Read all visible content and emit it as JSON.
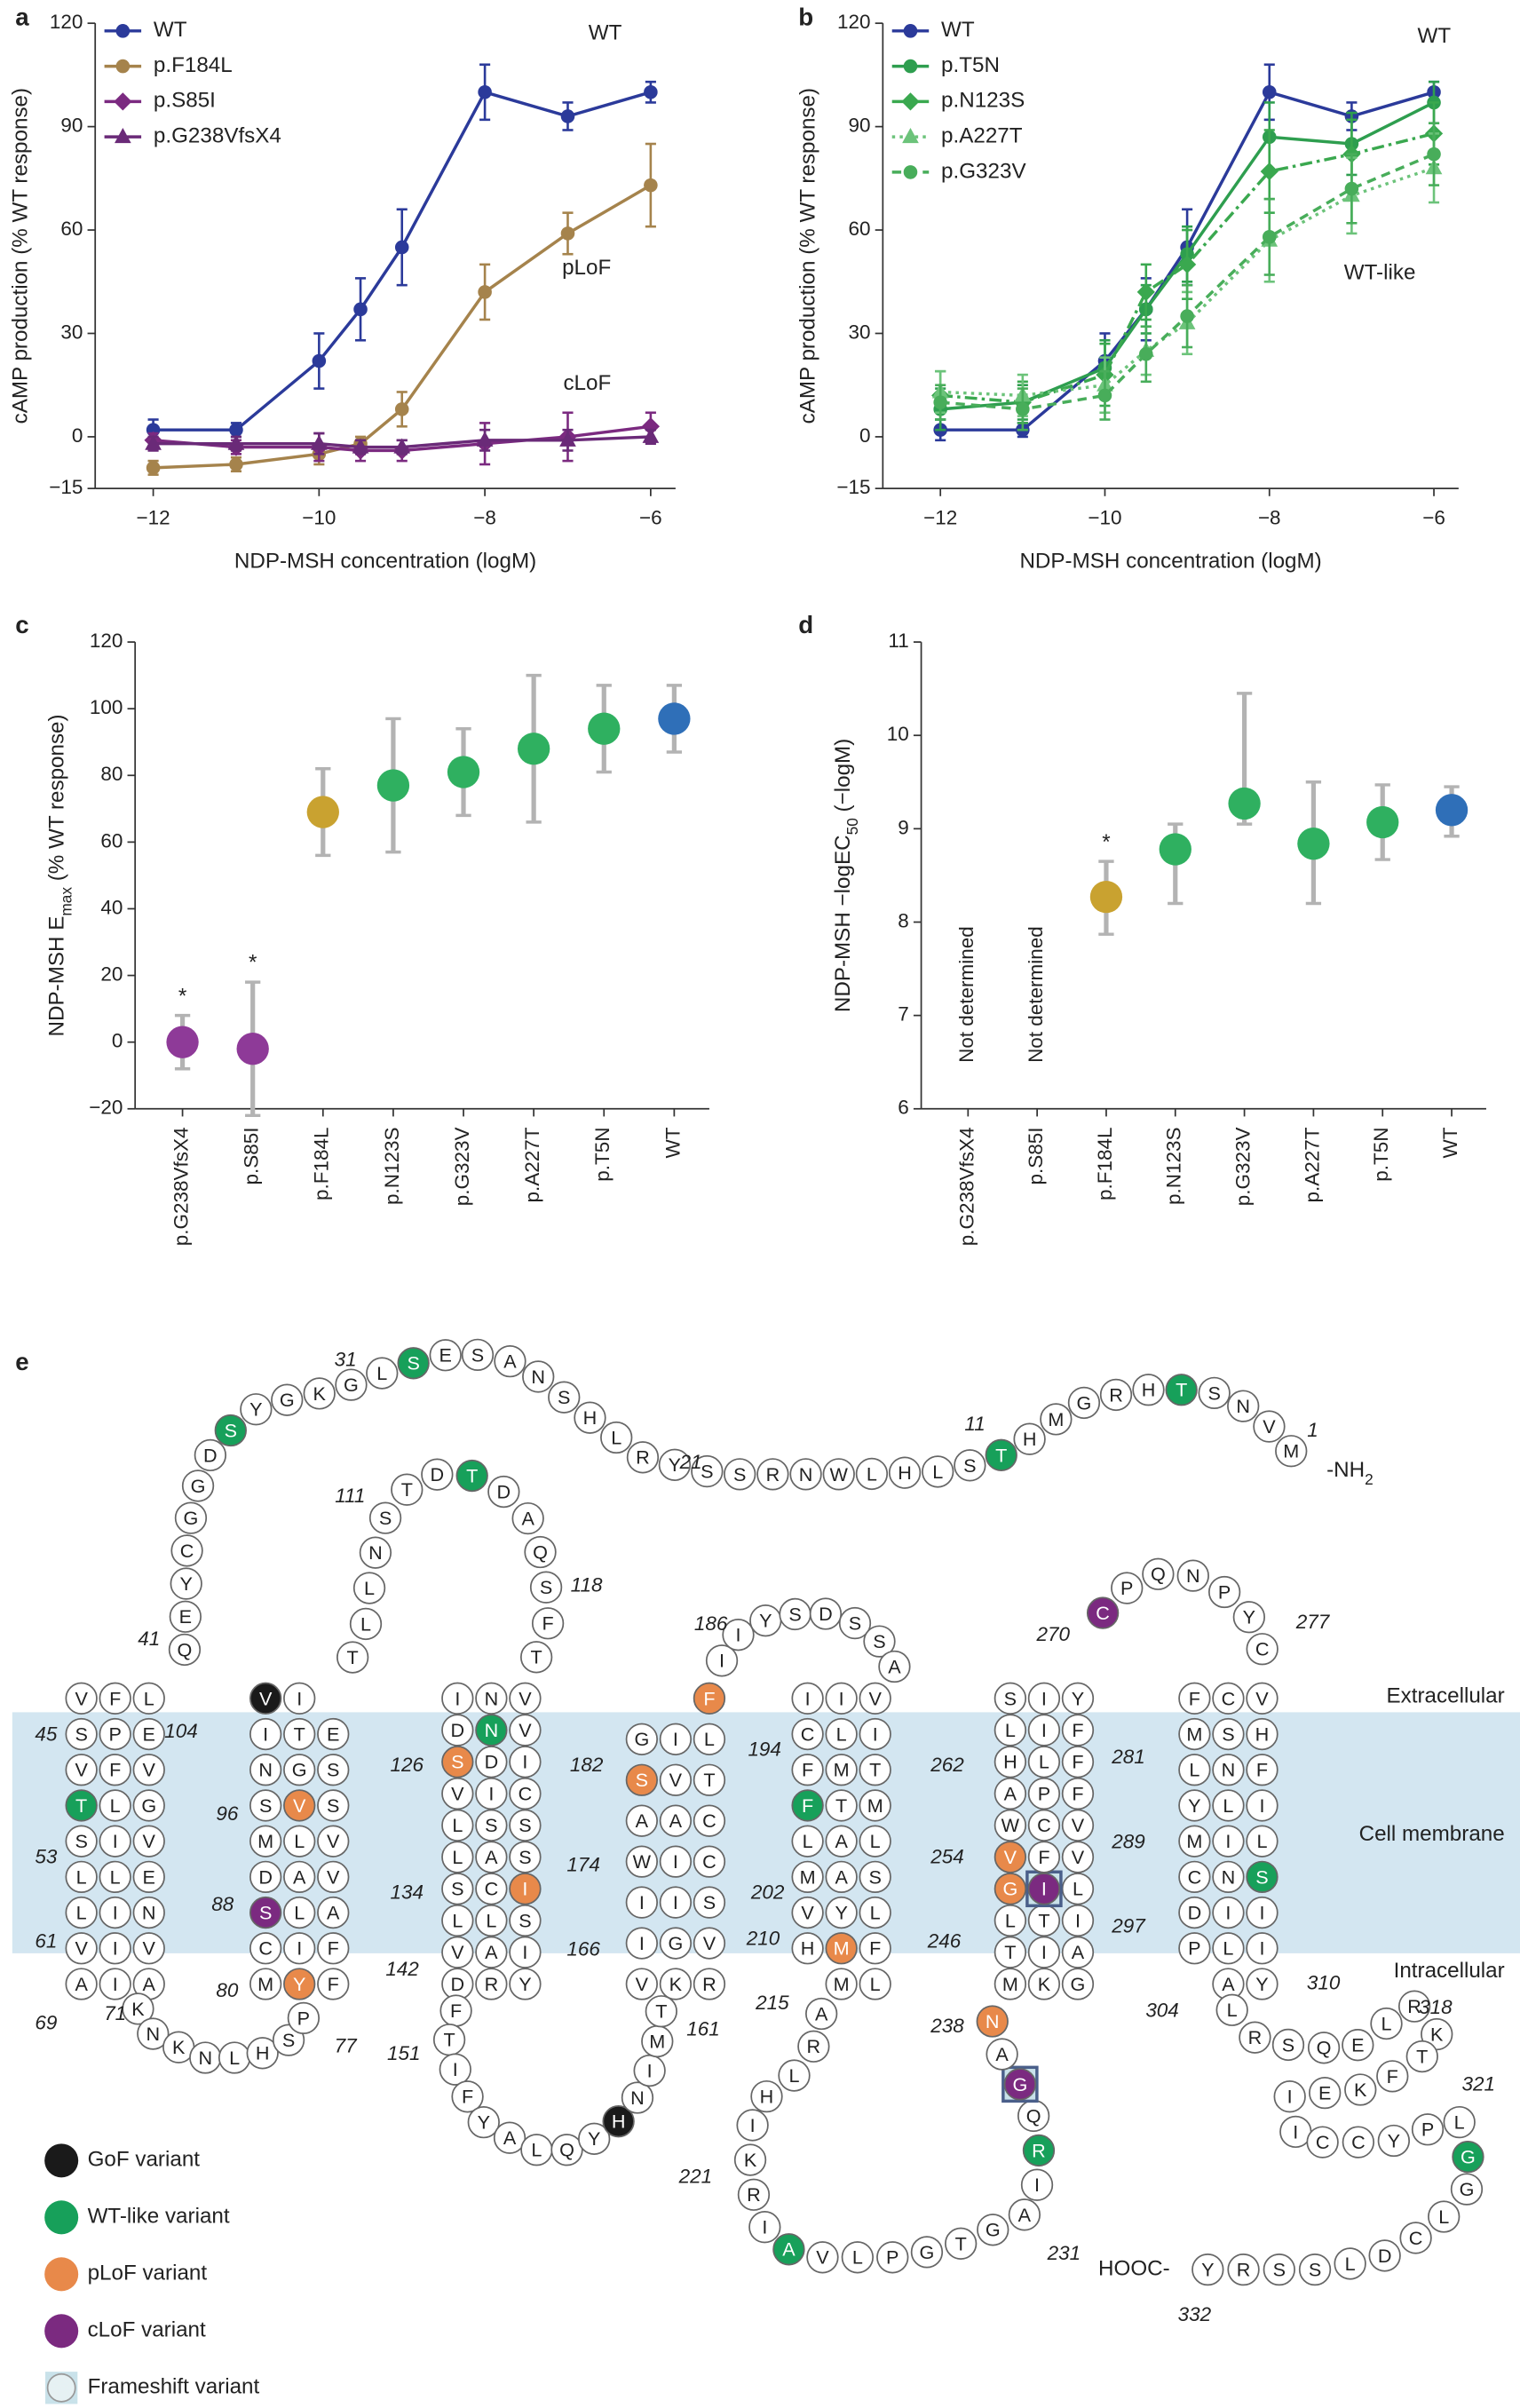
{
  "chart_data": [
    {
      "panel": "a",
      "type": "line",
      "x": [
        -12,
        -11,
        -10,
        -9.5,
        -9,
        -8,
        -7,
        -6
      ],
      "series": [
        {
          "name": "WT",
          "color": "#2b3a9a",
          "marker": "circle",
          "linestyle": "solid",
          "values": [
            2,
            2,
            22,
            37,
            55,
            100,
            93,
            100
          ],
          "errors": [
            3,
            2,
            8,
            9,
            11,
            8,
            4,
            3
          ]
        },
        {
          "name": "p.F184L",
          "color": "#a5834c",
          "marker": "circle",
          "linestyle": "solid",
          "values": [
            -9,
            -8,
            -5,
            -2,
            8,
            42,
            59,
            73
          ],
          "errors": [
            2,
            2,
            3,
            2,
            5,
            8,
            6,
            12
          ]
        },
        {
          "name": "p.S85I",
          "color": "#7b2a80",
          "marker": "diamond",
          "linestyle": "solid",
          "values": [
            -1,
            -3,
            -3,
            -4,
            -4,
            -2,
            0,
            3
          ],
          "errors": [
            2,
            2,
            4,
            3,
            3,
            6,
            7,
            4
          ]
        },
        {
          "name": "p.G238VfsX4",
          "color": "#6a2a78",
          "marker": "triangle",
          "linestyle": "solid",
          "values": [
            -2,
            -2,
            -2,
            -3,
            -3,
            -1,
            -1,
            0
          ],
          "errors": [
            2,
            2,
            3,
            2,
            2,
            3,
            3,
            2
          ]
        }
      ],
      "xlim": [
        -12.7,
        -5.7
      ],
      "xticks": [
        {
          "value": -12,
          "label": "−12"
        },
        {
          "value": -10,
          "label": "−10"
        },
        {
          "value": -8,
          "label": "−8"
        },
        {
          "value": -6,
          "label": "−6"
        }
      ],
      "ylim": [
        -15,
        120
      ],
      "yticks": [
        {
          "value": -15,
          "label": "−15"
        },
        0,
        30,
        60,
        90,
        120
      ],
      "x_label": "NDP-MSH concentration (logM)",
      "y_label": "cAMP production (% WT response)",
      "annotations": [
        "WT",
        "pLoF",
        "cLoF"
      ]
    },
    {
      "panel": "b",
      "type": "line",
      "x": [
        -12,
        -11,
        -10,
        -9.5,
        -9,
        -8,
        -7,
        -6
      ],
      "series": [
        {
          "name": "WT",
          "color": "#2b3a9a",
          "marker": "circle",
          "linestyle": "solid",
          "values": [
            2,
            2,
            22,
            37,
            55,
            100,
            93,
            100
          ],
          "errors": [
            3,
            2,
            8,
            9,
            11,
            8,
            4,
            3
          ]
        },
        {
          "name": "p.T5N",
          "color": "#2e9e4f",
          "marker": "circle",
          "linestyle": "solid",
          "values": [
            8,
            10,
            20,
            37,
            53,
            87,
            85,
            97
          ],
          "errors": [
            6,
            5,
            8,
            7,
            8,
            10,
            9,
            6
          ]
        },
        {
          "name": "p.N123S",
          "color": "#3aa84f",
          "marker": "diamond",
          "linestyle": "dashdot",
          "values": [
            12,
            10,
            18,
            42,
            50,
            77,
            82,
            88
          ],
          "errors": [
            7,
            6,
            9,
            8,
            10,
            12,
            10,
            9
          ]
        },
        {
          "name": "p.A227T",
          "color": "#6cc37a",
          "marker": "triangle",
          "linestyle": "dotted",
          "values": [
            13,
            12,
            15,
            25,
            33,
            57,
            70,
            78
          ],
          "errors": [
            6,
            6,
            8,
            7,
            9,
            12,
            11,
            10
          ]
        },
        {
          "name": "p.G323V",
          "color": "#48ad5a",
          "marker": "circle",
          "linestyle": "dashed",
          "values": [
            10,
            8,
            12,
            24,
            35,
            58,
            72,
            82
          ],
          "errors": [
            5,
            6,
            7,
            8,
            9,
            11,
            10,
            9
          ]
        }
      ],
      "xlim": [
        -12.7,
        -5.7
      ],
      "xticks": [
        {
          "value": -12,
          "label": "−12"
        },
        {
          "value": -10,
          "label": "−10"
        },
        {
          "value": -8,
          "label": "−8"
        },
        {
          "value": -6,
          "label": "−6"
        }
      ],
      "ylim": [
        -15,
        120
      ],
      "yticks": [
        {
          "value": -15,
          "label": "−15"
        },
        0,
        30,
        60,
        90,
        120
      ],
      "x_label": "NDP-MSH concentration (logM)",
      "y_label": "cAMP production (% WT response)",
      "annotations": [
        "WT",
        "WT-like"
      ]
    },
    {
      "panel": "c",
      "type": "dot",
      "categories": [
        "p.G238VfsX4",
        "p.S85I",
        "p.F184L",
        "p.N123S",
        "p.G323V",
        "p.A227T",
        "p.T5N",
        "WT"
      ],
      "values": [
        0,
        -2,
        69,
        77,
        81,
        88,
        94,
        97
      ],
      "errors": [
        8,
        20,
        13,
        20,
        13,
        22,
        13,
        10
      ],
      "colors": [
        "#8e3a98",
        "#8e3a98",
        "#c9a230",
        "#2fb060",
        "#2fb060",
        "#2fb060",
        "#2fb060",
        "#2f6fb8"
      ],
      "significance": [
        "*",
        "*",
        null,
        null,
        null,
        null,
        null,
        null
      ],
      "ylim": [
        -20,
        120
      ],
      "yticks": [
        {
          "value": -20,
          "label": "−20"
        },
        0,
        20,
        40,
        60,
        80,
        100,
        120
      ],
      "y_label": [
        "NDP-MSH E",
        "max",
        " (% WT response)"
      ]
    },
    {
      "panel": "d",
      "type": "dot",
      "categories": [
        "p.G238VfsX4",
        "p.S85I",
        "p.F184L",
        "p.N123S",
        "p.G323V",
        "p.A227T",
        "p.T5N",
        "WT"
      ],
      "values": [
        null,
        null,
        8.27,
        8.78,
        9.27,
        8.84,
        9.07,
        9.2
      ],
      "error_low": [
        null,
        null,
        0.4,
        0.58,
        0.22,
        0.64,
        0.4,
        0.28
      ],
      "error_high": [
        null,
        null,
        0.38,
        0.27,
        1.18,
        0.66,
        0.4,
        0.25
      ],
      "colors": [
        "#8e3a98",
        "#8e3a98",
        "#c9a230",
        "#2fb060",
        "#2fb060",
        "#2fb060",
        "#2fb060",
        "#2f6fb8"
      ],
      "significance": [
        null,
        null,
        "*",
        null,
        null,
        null,
        null,
        null
      ],
      "not_determined": [
        "Not determined",
        "Not determined",
        null,
        null,
        null,
        null,
        null,
        null
      ],
      "ylim": [
        6,
        11
      ],
      "yticks": [
        6,
        7,
        8,
        9,
        10,
        11
      ],
      "y_label": [
        "NDP-MSH −logEC",
        "50",
        " (−logM)"
      ]
    }
  ],
  "snake": {
    "panel": "e",
    "sequence": "MVNSTHRGMHTSLHLWNRSSYRLHSNASESLGKGYSDGGCYEQLFVSPEVFVTLGVISLLENILVIVAIAKNKNLHSPMYFFICSLAVADMLVSVSNGSETIVITLLNSTDTDAQSFTVNIDNVIDSVICSSLLASICSLLSIAVDRYFTIFYALQYHNIMTVKRVGIIISCIWAACTVSGILFIIYSDSSAVIICLITMFFTMLALMASLYVHMFLMARLHIKRIAVLPGTGAIRQGANMKGAITLTILIGVFVVCWAPFFLHLIFYISCPQNPYCVCFMSHFNLYLILIMCNSIIDPLIYALRSQELRKTFKEIICCYPLGGLCDLSSRY",
    "position_labels": [
      1,
      11,
      21,
      31,
      41,
      45,
      53,
      61,
      69,
      71,
      77,
      80,
      88,
      96,
      104,
      111,
      118,
      126,
      134,
      142,
      151,
      161,
      166,
      174,
      182,
      186,
      194,
      202,
      210,
      215,
      221,
      231,
      238,
      246,
      254,
      262,
      270,
      277,
      281,
      289,
      297,
      304,
      310,
      318,
      321,
      332
    ],
    "variant_classes": [
      {
        "name": "GoF variant",
        "color": "#1a1a1a",
        "positions": [
          103,
          158
        ]
      },
      {
        "name": "WT-like variant",
        "color": "#17a05a",
        "positions": [
          5,
          11,
          30,
          36,
          53,
          112,
          123,
          202,
          227,
          236,
          295,
          323
        ]
      },
      {
        "name": "pLoF variant",
        "color": "#e8894a",
        "positions": [
          80,
          95,
          127,
          137,
          180,
          184,
          215,
          240,
          252,
          253
        ]
      },
      {
        "name": "cLoF variant",
        "color": "#7b2a80",
        "positions": [
          85,
          238,
          251,
          271
        ]
      },
      {
        "name": "Frameshift variant",
        "color": "#4a5f8a",
        "positions": [
          238,
          251
        ]
      }
    ],
    "regions": [
      "Extracellular",
      "Cell membrane",
      "Intracellular"
    ],
    "n_terminus": [
      "-NH",
      "2"
    ],
    "c_terminus": "HOOC-"
  }
}
